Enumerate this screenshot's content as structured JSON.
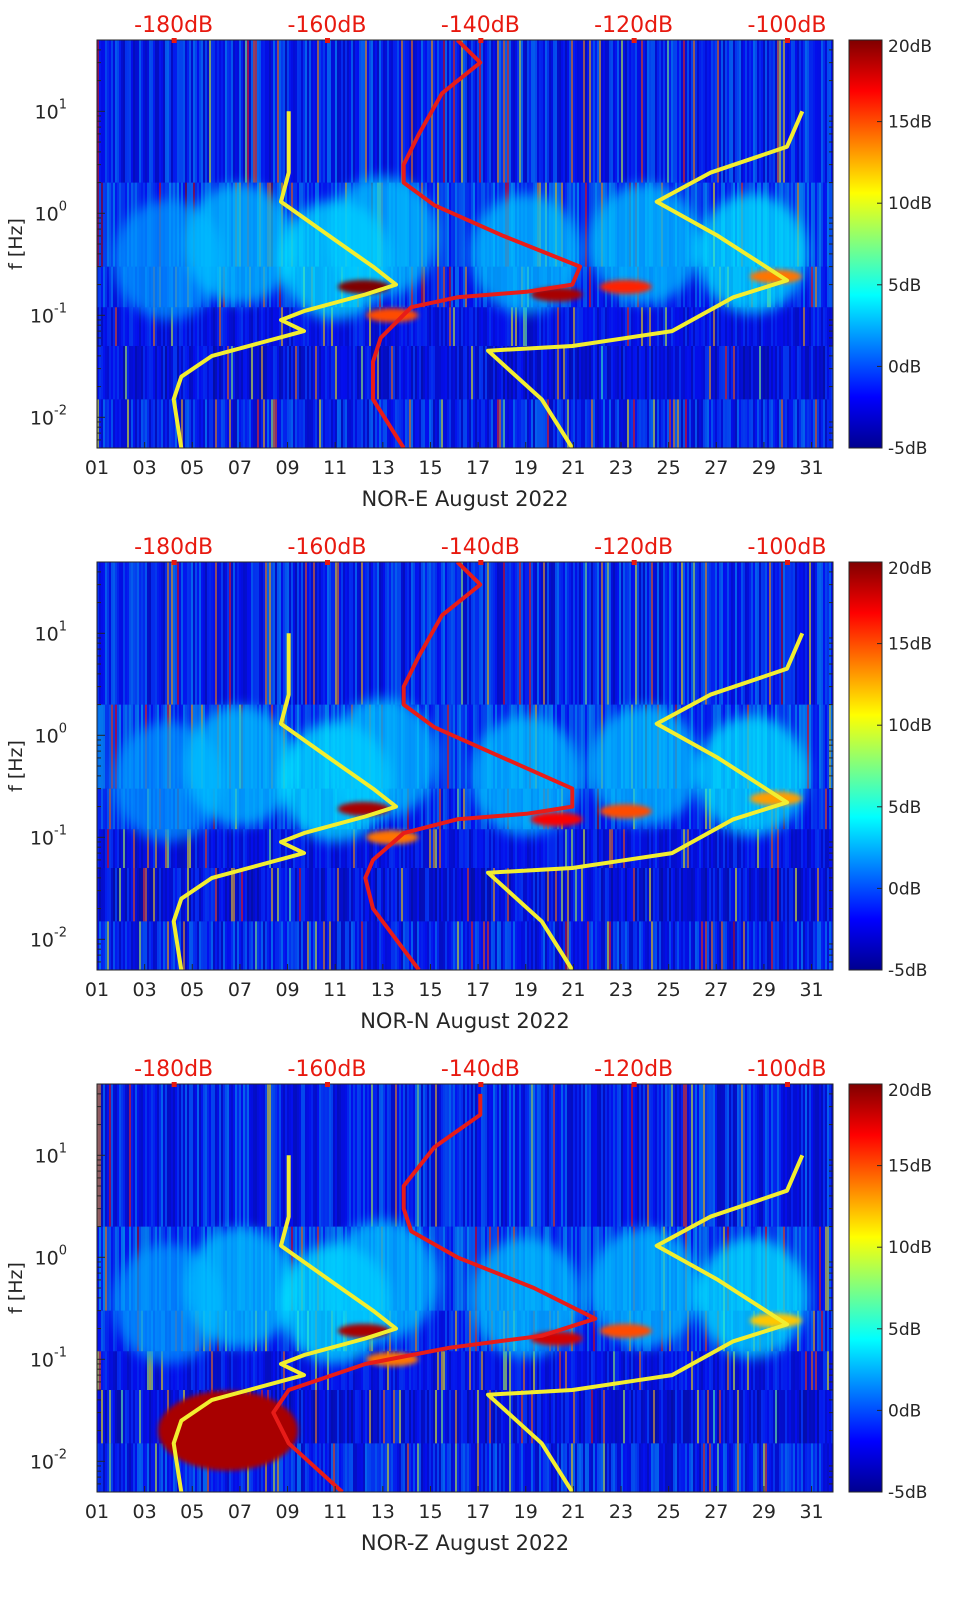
{
  "chart_data": [
    {
      "type": "heatmap",
      "xlabel": "NOR-E August 2022",
      "ylabel": "f [Hz]",
      "x_ticks": [
        "01",
        "03",
        "05",
        "07",
        "09",
        "11",
        "13",
        "15",
        "17",
        "19",
        "21",
        "23",
        "25",
        "27",
        "29",
        "31"
      ],
      "y_ticks": [
        "10^-2",
        "10^-1",
        "10^0",
        "10^1"
      ],
      "ylim": [
        0.005,
        50
      ],
      "y_scale": "log",
      "top_axis_ticks": [
        "-180dB",
        "-160dB",
        "-140dB",
        "-120dB",
        "-100dB"
      ],
      "colorbar": {
        "ticks": [
          "20dB",
          "15dB",
          "10dB",
          "5dB",
          "0dB",
          "-5dB"
        ],
        "range": [
          -5,
          20
        ],
        "colormap": "jet"
      },
      "hotspots": [
        {
          "day": 12.2,
          "freq": 0.19,
          "db": 20
        },
        {
          "day": 20.3,
          "freq": 0.16,
          "db": 19
        },
        {
          "day": 23.2,
          "freq": 0.19,
          "db": 16
        },
        {
          "day": 29.5,
          "freq": 0.24,
          "db": 14
        },
        {
          "day": 13.4,
          "freq": 0.1,
          "db": 15
        }
      ],
      "series": [
        {
          "name": "",
          "color": "#f2ee30",
          "points": [
            [
              -165,
              10
            ],
            [
              -165,
              2.5
            ],
            [
              -166,
              1.3
            ],
            [
              -159,
              0.55
            ],
            [
              -154,
              0.3
            ],
            [
              -151,
              0.2
            ],
            [
              -155,
              0.16
            ],
            [
              -163,
              0.11
            ],
            [
              -166,
              0.09
            ],
            [
              -163,
              0.07
            ],
            [
              -175,
              0.04
            ],
            [
              -179,
              0.025
            ],
            [
              -180,
              0.015
            ],
            [
              -179,
              0.005
            ]
          ]
        },
        {
          "name": "",
          "color": "#f2ee30",
          "points": [
            [
              -98,
              10
            ],
            [
              -100,
              4.5
            ],
            [
              -110,
              2.5
            ],
            [
              -117,
              1.3
            ],
            [
              -109,
              0.6
            ],
            [
              -100,
              0.22
            ],
            [
              -107,
              0.15
            ],
            [
              -115,
              0.07
            ],
            [
              -128,
              0.05
            ],
            [
              -139,
              0.045
            ],
            [
              -132,
              0.015
            ],
            [
              -128,
              0.005
            ]
          ]
        },
        {
          "name": "",
          "color": "#e81c18",
          "points": [
            [
              -143,
              50
            ],
            [
              -140,
              30
            ],
            [
              -145,
              15
            ],
            [
              -148,
              6
            ],
            [
              -150,
              3
            ],
            [
              -150,
              2
            ],
            [
              -146,
              1.2
            ],
            [
              -137,
              0.6
            ],
            [
              -127,
              0.3
            ],
            [
              -128,
              0.2
            ],
            [
              -134,
              0.17
            ],
            [
              -143,
              0.15
            ],
            [
              -149,
              0.12
            ],
            [
              -153,
              0.06
            ],
            [
              -154,
              0.035
            ],
            [
              -154,
              0.015
            ],
            [
              -150,
              0.005
            ]
          ]
        }
      ]
    },
    {
      "type": "heatmap",
      "xlabel": "NOR-N August 2022",
      "ylabel": "f [Hz]",
      "x_ticks": [
        "01",
        "03",
        "05",
        "07",
        "09",
        "11",
        "13",
        "15",
        "17",
        "19",
        "21",
        "23",
        "25",
        "27",
        "29",
        "31"
      ],
      "y_ticks": [
        "10^-2",
        "10^-1",
        "10^0",
        "10^1"
      ],
      "ylim": [
        0.005,
        50
      ],
      "y_scale": "log",
      "top_axis_ticks": [
        "-180dB",
        "-160dB",
        "-140dB",
        "-120dB",
        "-100dB"
      ],
      "colorbar": {
        "ticks": [
          "20dB",
          "15dB",
          "10dB",
          "5dB",
          "0dB",
          "-5dB"
        ],
        "range": [
          -5,
          20
        ],
        "colormap": "jet"
      },
      "hotspots": [
        {
          "day": 12.2,
          "freq": 0.19,
          "db": 19
        },
        {
          "day": 20.3,
          "freq": 0.15,
          "db": 17
        },
        {
          "day": 23.2,
          "freq": 0.18,
          "db": 15
        },
        {
          "day": 29.5,
          "freq": 0.24,
          "db": 13
        },
        {
          "day": 13.4,
          "freq": 0.1,
          "db": 14
        }
      ],
      "series": [
        {
          "name": "",
          "color": "#f2ee30",
          "points": [
            [
              -165,
              10
            ],
            [
              -165,
              2.5
            ],
            [
              -166,
              1.3
            ],
            [
              -159,
              0.55
            ],
            [
              -154,
              0.3
            ],
            [
              -151,
              0.2
            ],
            [
              -155,
              0.16
            ],
            [
              -163,
              0.11
            ],
            [
              -166,
              0.09
            ],
            [
              -163,
              0.07
            ],
            [
              -175,
              0.04
            ],
            [
              -179,
              0.025
            ],
            [
              -180,
              0.015
            ],
            [
              -179,
              0.005
            ]
          ]
        },
        {
          "name": "",
          "color": "#f2ee30",
          "points": [
            [
              -98,
              10
            ],
            [
              -100,
              4.5
            ],
            [
              -110,
              2.5
            ],
            [
              -117,
              1.3
            ],
            [
              -109,
              0.6
            ],
            [
              -100,
              0.22
            ],
            [
              -107,
              0.15
            ],
            [
              -115,
              0.07
            ],
            [
              -128,
              0.05
            ],
            [
              -139,
              0.045
            ],
            [
              -132,
              0.015
            ],
            [
              -128,
              0.005
            ]
          ]
        },
        {
          "name": "",
          "color": "#e81c18",
          "points": [
            [
              -143,
              50
            ],
            [
              -140,
              30
            ],
            [
              -145,
              15
            ],
            [
              -148,
              6
            ],
            [
              -150,
              3
            ],
            [
              -150,
              2
            ],
            [
              -146,
              1.2
            ],
            [
              -137,
              0.6
            ],
            [
              -128,
              0.3
            ],
            [
              -128,
              0.2
            ],
            [
              -134,
              0.17
            ],
            [
              -143,
              0.15
            ],
            [
              -150,
              0.11
            ],
            [
              -154,
              0.06
            ],
            [
              -155,
              0.04
            ],
            [
              -154,
              0.02
            ],
            [
              -148,
              0.005
            ]
          ]
        }
      ]
    },
    {
      "type": "heatmap",
      "xlabel": "NOR-Z August 2022",
      "ylabel": "f [Hz]",
      "x_ticks": [
        "01",
        "03",
        "05",
        "07",
        "09",
        "11",
        "13",
        "15",
        "17",
        "19",
        "21",
        "23",
        "25",
        "27",
        "29",
        "31"
      ],
      "y_ticks": [
        "10^-2",
        "10^-1",
        "10^0",
        "10^1"
      ],
      "ylim": [
        0.005,
        50
      ],
      "y_scale": "log",
      "top_axis_ticks": [
        "-180dB",
        "-160dB",
        "-140dB",
        "-120dB",
        "-100dB"
      ],
      "colorbar": {
        "ticks": [
          "20dB",
          "15dB",
          "10dB",
          "5dB",
          "0dB",
          "-5dB"
        ],
        "range": [
          -5,
          20
        ],
        "colormap": "jet"
      },
      "hotspots": [
        {
          "day": 12.2,
          "freq": 0.19,
          "db": 19
        },
        {
          "day": 20.3,
          "freq": 0.16,
          "db": 18
        },
        {
          "day": 23.2,
          "freq": 0.19,
          "db": 15
        },
        {
          "day": 29.5,
          "freq": 0.24,
          "db": 12
        },
        {
          "day": 13.4,
          "freq": 0.1,
          "db": 14
        },
        {
          "day": 6.5,
          "freq": 0.02,
          "db": 19
        }
      ],
      "series": [
        {
          "name": "",
          "color": "#f2ee30",
          "points": [
            [
              -165,
              10
            ],
            [
              -165,
              2.5
            ],
            [
              -166,
              1.3
            ],
            [
              -159,
              0.55
            ],
            [
              -154,
              0.3
            ],
            [
              -151,
              0.2
            ],
            [
              -155,
              0.16
            ],
            [
              -163,
              0.11
            ],
            [
              -166,
              0.09
            ],
            [
              -163,
              0.07
            ],
            [
              -175,
              0.04
            ],
            [
              -179,
              0.025
            ],
            [
              -180,
              0.015
            ],
            [
              -179,
              0.005
            ]
          ]
        },
        {
          "name": "",
          "color": "#f2ee30",
          "points": [
            [
              -98,
              10
            ],
            [
              -100,
              4.5
            ],
            [
              -110,
              2.5
            ],
            [
              -117,
              1.3
            ],
            [
              -109,
              0.6
            ],
            [
              -100,
              0.22
            ],
            [
              -107,
              0.15
            ],
            [
              -115,
              0.07
            ],
            [
              -128,
              0.05
            ],
            [
              -139,
              0.045
            ],
            [
              -132,
              0.015
            ],
            [
              -128,
              0.005
            ]
          ]
        },
        {
          "name": "",
          "color": "#e81c18",
          "points": [
            [
              -140,
              40
            ],
            [
              -140,
              25
            ],
            [
              -146,
              12
            ],
            [
              -150,
              5
            ],
            [
              -150,
              3
            ],
            [
              -149,
              1.8
            ],
            [
              -143,
              1.0
            ],
            [
              -133,
              0.5
            ],
            [
              -125,
              0.25
            ],
            [
              -132,
              0.17
            ],
            [
              -144,
              0.13
            ],
            [
              -155,
              0.09
            ],
            [
              -165,
              0.05
            ],
            [
              -167,
              0.03
            ],
            [
              -165,
              0.015
            ],
            [
              -158,
              0.005
            ]
          ]
        }
      ]
    }
  ]
}
